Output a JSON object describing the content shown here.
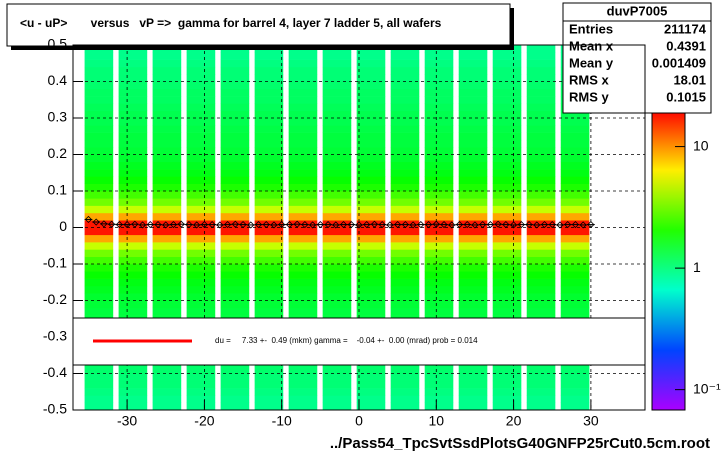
{
  "chart_data": {
    "type": "heatmap_profile",
    "title": "<u - uP>       versus   vP =>  gamma for barrel 4, layer 7 ladder 5, all wafers",
    "x_label": "../Pass54_TpcSvtSsdPlotsG40GNFP25rCut0.5cm.root",
    "xlim": [
      -37,
      37
    ],
    "xticks": [
      -30,
      -20,
      -10,
      0,
      10,
      20,
      30
    ],
    "ylim": [
      -0.5,
      0.5
    ],
    "yticks": [
      -0.5,
      -0.4,
      -0.3,
      -0.2,
      -0.1,
      0,
      0.1,
      0.2,
      0.3,
      0.4,
      0.5
    ],
    "grid": true,
    "zlim": [
      0.068,
      20
    ],
    "zscale": "log",
    "zticks": [
      {
        "value": 0.1,
        "label": "10⁻¹"
      },
      1,
      10
    ],
    "columns": [
      [
        -35.5,
        -31.8
      ],
      [
        -31.1,
        -27.4
      ],
      [
        -26.7,
        -23
      ],
      [
        -22.3,
        -18.6
      ],
      [
        -17.9,
        -14.2
      ],
      [
        -13.5,
        -9.8
      ],
      [
        -9.1,
        -5.4
      ],
      [
        -4.7,
        -1
      ],
      [
        -0.3,
        3.4
      ],
      [
        4.1,
        7.8
      ],
      [
        8.5,
        12.2
      ],
      [
        12.9,
        16.6
      ],
      [
        17.3,
        21
      ],
      [
        21.7,
        25.4
      ],
      [
        26.1,
        29.8
      ]
    ],
    "ybins_width": 0.02,
    "z": [
      0.9,
      0.9,
      0.95,
      1,
      1,
      1.05,
      1.1,
      1.1,
      1.15,
      1.2,
      1.2,
      1.25,
      1.3,
      1.3,
      1.35,
      1.4,
      1.5,
      1.6,
      1.8,
      2,
      2.4,
      3,
      4.5,
      9,
      18,
      18,
      9,
      4.5,
      3,
      2.4,
      2,
      1.8,
      1.6,
      1.5,
      1.4,
      1.35,
      1.3,
      1.3,
      1.25,
      1.2,
      1.2,
      1.15,
      1.1,
      1.1,
      1.05,
      1,
      1,
      0.95,
      0.9,
      0.9
    ],
    "profile": {
      "x": [
        -35,
        -34,
        -33,
        -32,
        -31,
        -30,
        -29,
        -28,
        -27,
        -26,
        -25,
        -24,
        -23,
        -22,
        -21,
        -20,
        -19,
        -18,
        -17,
        -16,
        -15,
        -14,
        -13,
        -12,
        -11,
        -10,
        -9,
        -8,
        -7,
        -6,
        -5,
        -4,
        -3,
        -2,
        -1,
        0,
        1,
        2,
        3,
        4,
        5,
        6,
        7,
        8,
        9,
        10,
        11,
        12,
        13,
        14,
        15,
        16,
        17,
        18,
        19,
        20,
        21,
        22,
        23,
        24,
        25,
        26,
        27,
        28,
        29,
        30
      ],
      "values": [
        0.022,
        0.015,
        0.01,
        0.009,
        0.008,
        0.008,
        0.009,
        0.007,
        0.008,
        0.008,
        0.007,
        0.008,
        0.009,
        0.008,
        0.007,
        0.008,
        0.008,
        0.007,
        0.008,
        0.009,
        0.008,
        0.007,
        0.008,
        0.008,
        0.007,
        0.008,
        0.008,
        0.009,
        0.008,
        0.007,
        0.008,
        0.008,
        0.007,
        0.008,
        0.008,
        0.007,
        0.008,
        0.009,
        0.008,
        0.007,
        0.008,
        0.008,
        0.007,
        0.008,
        0.008,
        0.009,
        0.008,
        0.007,
        0.008,
        0.008,
        0.007,
        0.008,
        0.008,
        0.009,
        0.008,
        0.007,
        0.008,
        0.008,
        0.007,
        0.008,
        0.008,
        0.007,
        0.008,
        0.008,
        0.007,
        0.008
      ]
    },
    "fit": {
      "color": "#ff0000",
      "label": "du =     7.33 +-  0.49 (mkm) gamma =    -0.04 +-  0.00 (mrad) prob = 0.014"
    },
    "stats": {
      "title": "duvP7005",
      "rows": [
        [
          "Entries",
          211174
        ],
        [
          "Mean x",
          0.4391
        ],
        [
          "Mean y",
          0.001409
        ],
        [
          "RMS x",
          18.01
        ],
        [
          "RMS y",
          0.1015
        ]
      ]
    }
  }
}
